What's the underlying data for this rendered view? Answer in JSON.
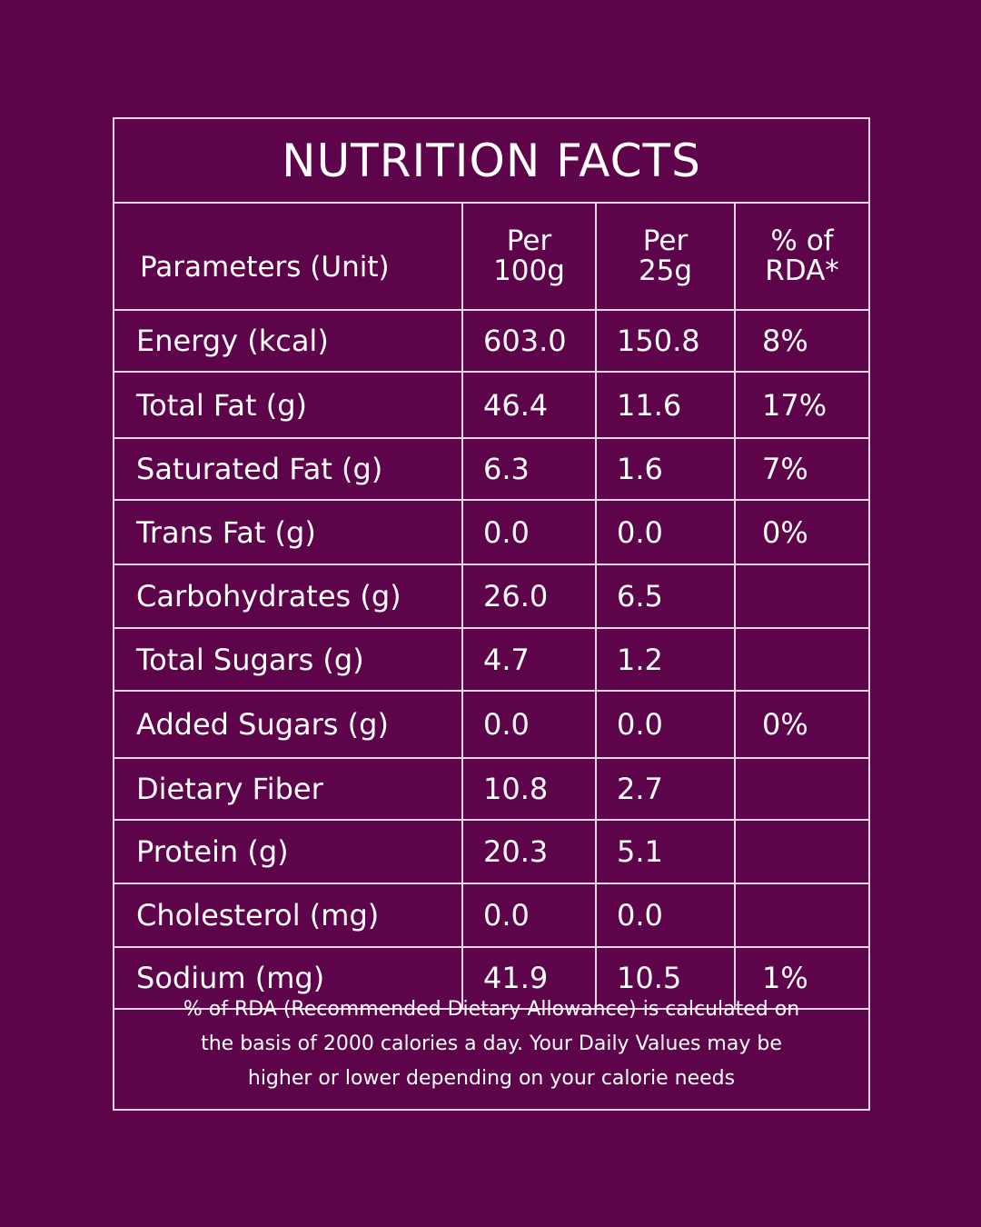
{
  "title": "NUTRITION FACTS",
  "headers": {
    "parameter": "Parameters (Unit)",
    "per100": [
      "Per",
      "100g"
    ],
    "per25": [
      "Per",
      "25g"
    ],
    "rda": [
      "% of",
      "RDA*"
    ]
  },
  "rows": [
    {
      "name": "Energy (kcal)",
      "per100": "603.0",
      "per25": "150.8",
      "rda": "8%"
    },
    {
      "name": "Total Fat (g)",
      "per100": "46.4",
      "per25": "11.6",
      "rda": "17%"
    },
    {
      "name": "Saturated Fat (g)",
      "per100": "6.3",
      "per25": "1.6",
      "rda": "7%"
    },
    {
      "name": "Trans Fat (g)",
      "per100": "0.0",
      "per25": "0.0",
      "rda": "0%"
    },
    {
      "name": "Carbohydrates (g)",
      "per100": "26.0",
      "per25": "6.5",
      "rda": ""
    },
    {
      "name": "Total Sugars (g)",
      "per100": "4.7",
      "per25": "1.2",
      "rda": ""
    },
    {
      "name": "Added Sugars (g)",
      "per100": "0.0",
      "per25": "0.0",
      "rda": "0%"
    },
    {
      "name": "Dietary Fiber",
      "per100": "10.8",
      "per25": "2.7",
      "rda": ""
    },
    {
      "name": "Protein (g)",
      "per100": "20.3",
      "per25": "5.1",
      "rda": ""
    },
    {
      "name": "Cholesterol (mg)",
      "per100": "0.0",
      "per25": "0.0",
      "rda": ""
    },
    {
      "name": "Sodium (mg)",
      "per100": "41.9",
      "per25": "10.5",
      "rda": "1%"
    }
  ],
  "footnote": [
    "% of RDA (Recommended Dietary Allowance) is calculated on",
    "the basis of 2000 calories a day. Your Daily Values may be",
    "higher or lower depending on your calorie needs"
  ],
  "colors": {
    "background": "#5e044b",
    "border": "#e9d6e4",
    "text": "#ffffff"
  }
}
